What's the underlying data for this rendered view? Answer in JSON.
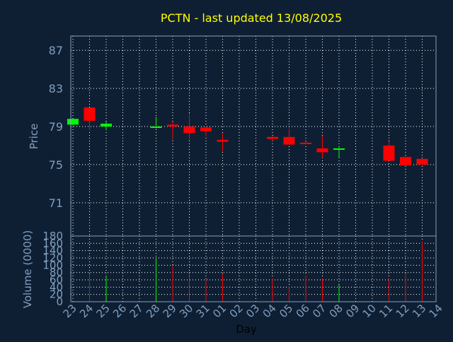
{
  "title": "PCTN - last updated 13/08/2025",
  "colors": {
    "background": "#0f1f33",
    "axis": "#7f9fbf",
    "title": "#ffff00",
    "grid": "#ffffff",
    "up": "#00ff00",
    "down": "#ff0000",
    "xlabel": "#000000"
  },
  "chart_data": [
    {
      "type": "candlestick",
      "ylabel": "Price",
      "ylim": [
        67.5,
        88.5
      ],
      "yticks": [
        87,
        83,
        79,
        75,
        71
      ],
      "grid": true,
      "x_labels": [
        "23",
        "24",
        "25",
        "26",
        "27",
        "28",
        "29",
        "30",
        "31",
        "01",
        "02",
        "03",
        "04",
        "05",
        "06",
        "07",
        "08",
        "09",
        "10",
        "11",
        "12",
        "13",
        "14"
      ],
      "candles": [
        {
          "day": "23",
          "open": 79.2,
          "close": 79.8,
          "high": 79.8,
          "low": 79.1
        },
        {
          "day": "24",
          "open": 81.0,
          "close": 79.6,
          "high": 81.0,
          "low": 78.6
        },
        {
          "day": "25",
          "open": 79.0,
          "close": 79.3,
          "high": 79.5,
          "low": 78.6
        },
        {
          "day": "28",
          "open": 79.0,
          "close": 79.0,
          "high": 80.0,
          "low": 78.8
        },
        {
          "day": "29",
          "open": 79.2,
          "close": 79.0,
          "high": 79.5,
          "low": 77.6
        },
        {
          "day": "30",
          "open": 79.0,
          "close": 78.3,
          "high": 80.4,
          "low": 77.6
        },
        {
          "day": "31",
          "open": 78.9,
          "close": 78.5,
          "high": 79.0,
          "low": 78.0
        },
        {
          "day": "01",
          "open": 77.6,
          "close": 77.4,
          "high": 78.3,
          "low": 76.4
        },
        {
          "day": "04",
          "open": 77.9,
          "close": 77.7,
          "high": 78.0,
          "low": 77.5
        },
        {
          "day": "05",
          "open": 77.9,
          "close": 77.1,
          "high": 78.8,
          "low": 77.1
        },
        {
          "day": "06",
          "open": 77.3,
          "close": 77.2,
          "high": 77.4,
          "low": 77.1
        },
        {
          "day": "07",
          "open": 76.7,
          "close": 76.3,
          "high": 78.0,
          "low": 75.7
        },
        {
          "day": "08",
          "open": 76.6,
          "close": 76.7,
          "high": 76.8,
          "low": 75.7
        },
        {
          "day": "11",
          "open": 77.0,
          "close": 75.4,
          "high": 77.4,
          "low": 75.4
        },
        {
          "day": "12",
          "open": 75.8,
          "close": 74.9,
          "high": 75.9,
          "low": 74.9
        },
        {
          "day": "13",
          "open": 75.6,
          "close": 75.0,
          "high": 75.6,
          "low": 74.9
        }
      ]
    },
    {
      "type": "bar",
      "ylabel": "Volume (0000)",
      "xlabel": "Day",
      "ylim": [
        0,
        180
      ],
      "yticks": [
        0,
        20,
        40,
        60,
        80,
        100,
        120,
        140,
        160,
        180
      ],
      "grid": true,
      "x_labels": [
        "23",
        "24",
        "25",
        "26",
        "27",
        "28",
        "29",
        "30",
        "31",
        "01",
        "02",
        "03",
        "04",
        "05",
        "06",
        "07",
        "08",
        "09",
        "10",
        "11",
        "12",
        "13",
        "14"
      ],
      "bars": [
        {
          "day": "24",
          "value": 78,
          "direction": "down"
        },
        {
          "day": "25",
          "value": 72,
          "direction": "up"
        },
        {
          "day": "28",
          "value": 118,
          "direction": "up"
        },
        {
          "day": "29",
          "value": 98,
          "direction": "down"
        },
        {
          "day": "30",
          "value": 68,
          "direction": "down"
        },
        {
          "day": "31",
          "value": 60,
          "direction": "down"
        },
        {
          "day": "01",
          "value": 76,
          "direction": "down"
        },
        {
          "day": "04",
          "value": 64,
          "direction": "down"
        },
        {
          "day": "05",
          "value": 40,
          "direction": "down"
        },
        {
          "day": "06",
          "value": 72,
          "direction": "down"
        },
        {
          "day": "07",
          "value": 64,
          "direction": "down"
        },
        {
          "day": "08",
          "value": 46,
          "direction": "up"
        },
        {
          "day": "11",
          "value": 64,
          "direction": "down"
        },
        {
          "day": "12",
          "value": 75,
          "direction": "down"
        },
        {
          "day": "13",
          "value": 164,
          "direction": "down"
        }
      ]
    }
  ]
}
